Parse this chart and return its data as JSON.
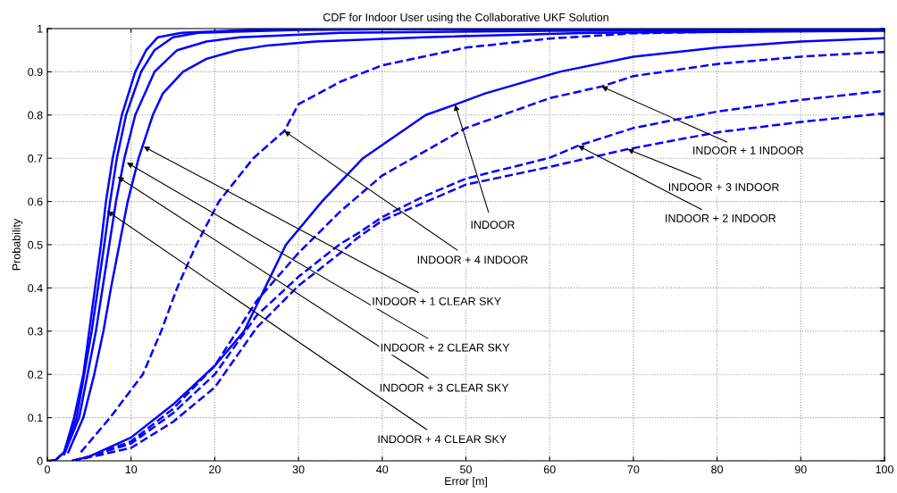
{
  "chart_data": {
    "type": "line",
    "title": "CDF for Indoor User using the Collaborative UKF Solution",
    "xlabel": "Error [m]",
    "ylabel": "Probability",
    "xlim": [
      0,
      100
    ],
    "ylim": [
      0,
      1
    ],
    "xticks": [
      0,
      10,
      20,
      30,
      40,
      50,
      60,
      70,
      80,
      90,
      100
    ],
    "yticks": [
      0,
      0.1,
      0.2,
      0.3,
      0.4,
      0.5,
      0.6,
      0.7,
      0.8,
      0.9,
      1
    ],
    "grid": true,
    "marker": "none",
    "series": [
      {
        "color": "#0000ff",
        "line_style": "solid",
        "x": [
          0,
          1,
          2,
          3.2,
          4.3,
          5.0,
          5.7,
          6.4,
          7.0,
          7.8,
          8.9,
          10.5,
          11.8,
          13.2,
          16,
          25,
          100
        ],
        "values": [
          0,
          0.002,
          0.02,
          0.1,
          0.2,
          0.3,
          0.4,
          0.5,
          0.6,
          0.7,
          0.8,
          0.9,
          0.95,
          0.98,
          0.99,
          0.998,
          1
        ]
      },
      {
        "color": "#0000ff",
        "line_style": "solid",
        "x": [
          1,
          2,
          3.5,
          5.3,
          6.8,
          7.5,
          8.3,
          9.4,
          11.2,
          12.8,
          15,
          18,
          30,
          50,
          100
        ],
        "values": [
          0.002,
          0.02,
          0.1,
          0.3,
          0.5,
          0.6,
          0.7,
          0.8,
          0.9,
          0.95,
          0.98,
          0.99,
          0.997,
          1,
          1
        ]
      },
      {
        "color": "#0000ff",
        "line_style": "solid",
        "x": [
          2,
          3.8,
          5.8,
          7.4,
          8.2,
          9.2,
          10.5,
          12.8,
          15.5,
          19,
          23,
          35,
          60,
          100
        ],
        "values": [
          0.015,
          0.1,
          0.3,
          0.5,
          0.6,
          0.7,
          0.8,
          0.9,
          0.95,
          0.97,
          0.98,
          0.99,
          0.995,
          0.998
        ]
      },
      {
        "color": "#0000ff",
        "line_style": "solid",
        "x": [
          2.5,
          4.3,
          5.6,
          6.7,
          7.6,
          8.6,
          9.6,
          10.9,
          12.6,
          13.8,
          16.2,
          19,
          22.7,
          26,
          32,
          45,
          65,
          100
        ],
        "values": [
          0.02,
          0.1,
          0.2,
          0.3,
          0.4,
          0.5,
          0.6,
          0.7,
          0.8,
          0.85,
          0.9,
          0.93,
          0.95,
          0.96,
          0.97,
          0.98,
          0.99,
          0.995
        ]
      },
      {
        "color": "#0000ff",
        "line_style": "dashed",
        "x": [
          4,
          7.5,
          11.4,
          13.6,
          15.5,
          17.8,
          20.5,
          24.6,
          28.3,
          30,
          35,
          40,
          50,
          60,
          70,
          100
        ],
        "values": [
          0.02,
          0.1,
          0.2,
          0.3,
          0.4,
          0.5,
          0.6,
          0.7,
          0.763,
          0.825,
          0.877,
          0.915,
          0.956,
          0.977,
          0.989,
          0.999
        ]
      },
      {
        "color": "#0000ff",
        "line_style": "solid",
        "x": [
          3,
          5,
          10,
          15,
          20,
          23.5,
          26,
          28.5,
          32.8,
          37.7,
          45.2,
          48.7,
          52.3,
          61.2,
          70,
          80,
          90,
          100
        ],
        "values": [
          0,
          0.01,
          0.054,
          0.13,
          0.22,
          0.3,
          0.4,
          0.5,
          0.6,
          0.7,
          0.8,
          0.824,
          0.85,
          0.9,
          0.935,
          0.956,
          0.97,
          0.978
        ]
      },
      {
        "color": "#0000ff",
        "line_style": "dashed",
        "x": [
          3,
          5,
          10,
          15,
          20,
          25,
          30,
          35,
          40,
          50,
          60,
          66.2,
          70,
          80,
          90,
          100
        ],
        "values": [
          0,
          0.01,
          0.045,
          0.12,
          0.22,
          0.37,
          0.481,
          0.577,
          0.66,
          0.77,
          0.839,
          0.866,
          0.89,
          0.918,
          0.935,
          0.946
        ]
      },
      {
        "color": "#0000ff",
        "line_style": "dashed",
        "x": [
          3,
          5,
          10,
          15,
          20,
          25,
          30,
          35,
          37,
          40,
          45,
          50,
          60,
          63.4,
          70,
          80,
          90,
          100
        ],
        "values": [
          0,
          0.01,
          0.04,
          0.11,
          0.2,
          0.336,
          0.426,
          0.502,
          0.525,
          0.564,
          0.612,
          0.653,
          0.701,
          0.729,
          0.77,
          0.808,
          0.835,
          0.856
        ]
      },
      {
        "color": "#0000ff",
        "line_style": "dashed",
        "x": [
          3,
          5,
          10,
          15,
          20,
          25,
          30,
          35,
          37,
          40,
          50,
          60,
          69.3,
          80,
          90,
          100
        ],
        "values": [
          0,
          0.008,
          0.03,
          0.09,
          0.17,
          0.308,
          0.405,
          0.481,
          0.515,
          0.556,
          0.639,
          0.68,
          0.721,
          0.76,
          0.784,
          0.804
        ]
      }
    ],
    "annotations": [
      {
        "text": "INDOOR + 4 CLEAR SKY",
        "x": 7.15,
        "y": 0.578
      },
      {
        "text": "INDOOR + 3 CLEAR SKY",
        "x": 8.4,
        "y": 0.657
      },
      {
        "text": "INDOOR + 2 CLEAR SKY",
        "x": 9.5,
        "y": 0.69
      },
      {
        "text": "INDOOR + 1 CLEAR SKY",
        "x": 11.5,
        "y": 0.727
      },
      {
        "text": "INDOOR + 4 INDOOR",
        "x": 28.3,
        "y": 0.763
      },
      {
        "text": "INDOOR",
        "x": 48.7,
        "y": 0.824
      },
      {
        "text": "INDOOR + 1 INDOOR",
        "x": 66.2,
        "y": 0.866
      },
      {
        "text": "INDOOR + 3 INDOOR",
        "x": 69.3,
        "y": 0.721
      },
      {
        "text": "INDOOR + 2 INDOOR",
        "x": 63.4,
        "y": 0.729
      }
    ]
  }
}
